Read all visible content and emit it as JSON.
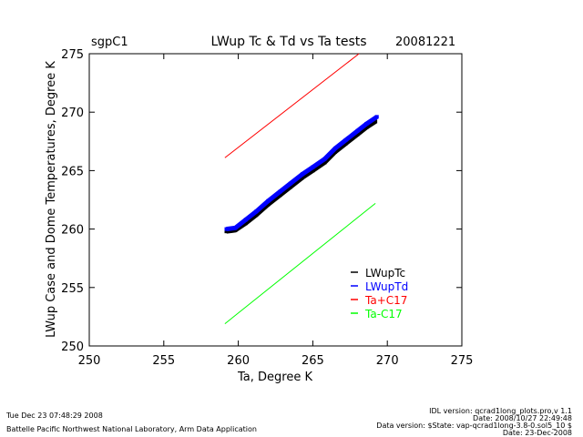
{
  "chart_data": {
    "type": "line",
    "site": "sgpC1",
    "title": "LWup Tc & Td vs Ta tests",
    "date": "20081221",
    "xlabel": "Ta, Degree K",
    "ylabel": "LWup Case and Dome Temperatures, Degree K",
    "xlim": [
      250,
      275
    ],
    "ylim": [
      250,
      275
    ],
    "xticks": [
      "250",
      "255",
      "260",
      "265",
      "270",
      "275"
    ],
    "yticks": [
      "250",
      "255",
      "260",
      "265",
      "270",
      "275"
    ],
    "legend_position": "bottom-right",
    "series": [
      {
        "name": "LWupTc",
        "color": "#000000",
        "style": "points",
        "x": [
          259.2,
          259.8,
          260.5,
          261.2,
          262.0,
          262.8,
          263.5,
          264.3,
          265.0,
          265.8,
          266.5,
          267.2,
          268.0,
          268.6,
          269.2
        ],
        "y": [
          259.8,
          259.9,
          260.5,
          261.2,
          262.1,
          262.9,
          263.6,
          264.4,
          265.0,
          265.7,
          266.6,
          267.3,
          268.1,
          268.7,
          269.2
        ]
      },
      {
        "name": "LWupTd",
        "color": "#0000ff",
        "style": "points",
        "x": [
          259.2,
          259.8,
          260.5,
          261.2,
          262.0,
          262.8,
          263.5,
          264.3,
          265.0,
          265.8,
          266.5,
          267.2,
          268.0,
          268.6,
          269.3
        ],
        "y": [
          260.0,
          260.1,
          260.8,
          261.5,
          262.4,
          263.2,
          263.9,
          264.7,
          265.3,
          266.0,
          266.9,
          267.6,
          268.4,
          269.0,
          269.6
        ]
      },
      {
        "name": "Ta+C17",
        "color": "#ff0000",
        "style": "line",
        "x": [
          259.1,
          268.1
        ],
        "y": [
          266.1,
          275.0
        ]
      },
      {
        "name": "Ta-C17",
        "color": "#00ff00",
        "style": "line",
        "x": [
          259.1,
          269.2
        ],
        "y": [
          251.9,
          262.2
        ]
      }
    ]
  },
  "footer": {
    "timestamp": "Tue Dec 23 07:48:29 2008",
    "org": "Battelle Pacific Northwest National Laboratory, Arm Data Application",
    "idl_version": "IDL version: qcrad1long_plots.pro,v 1.1",
    "idl_date": "Date: 2008/10/27 22:49:48",
    "data_version": "Data version: $State: vap-qcrad1long-3.8-0.sol5_10 $",
    "data_date": "Date: 23-Dec-2008"
  }
}
